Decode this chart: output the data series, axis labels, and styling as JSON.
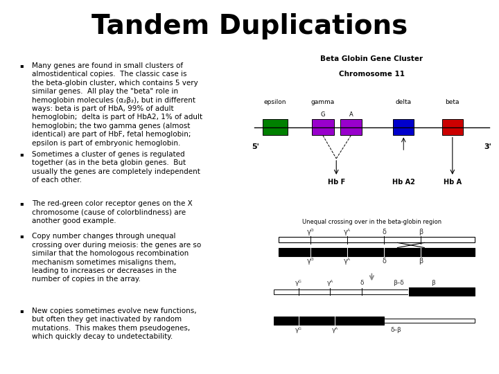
{
  "title": "Tandem Duplications",
  "title_fontsize": 28,
  "bg_color": "#ffffff",
  "text_color": "#000000",
  "bullet_fontsize": 7.5,
  "bullets": [
    "Many genes are found in small clusters of\nalmostidentical copies.  The classic case is\nthe beta-globin cluster, which contains 5 very\nsimilar genes.  All play the \"beta\" role in\nhemoglobin molecules (α₂β₂), but in different\nways: beta is part of HbA, 99% of adult\nhemoglobin;  delta is part of HbA2, 1% of adult\nhemoglobin; the two gamma genes (almost\nidentical) are part of HbF, fetal hemoglobin;\nepsilon is part of embryonic hemoglobin.",
    "Sometimes a cluster of genes is regulated\ntogether (as in the beta globin genes.  But\nusually the genes are completely independent\nof each other.",
    "The red-green color receptor genes on the X\nchromosome (cause of colorblindness) are\nanother good example.",
    "Copy number changes through unequal\ncrossing over during meiosis: the genes are so\nsimilar that the homologous recombination\nmechanism sometimes misaligns them,\nleading to increases or decreases in the\nnumber of copies in the array.",
    "New copies sometimes evolve new functions,\nbut often they get inactivated by random\nmutations.  This makes them pseudogenes,\nwhich quickly decay to undetectability."
  ],
  "diagram_title_line1": "Beta Globin Gene Cluster",
  "diagram_title_line2": "Chromosome 11",
  "gene_colors": [
    "#008000",
    "#9900cc",
    "#9900cc",
    "#0000cc",
    "#cc0000"
  ],
  "label_5prime": "5'",
  "label_3prime": "3'",
  "hb_labels": [
    "Hb F",
    "Hb A2",
    "Hb A"
  ],
  "crossing_title": "Unequal crossing over in the beta-globin region"
}
